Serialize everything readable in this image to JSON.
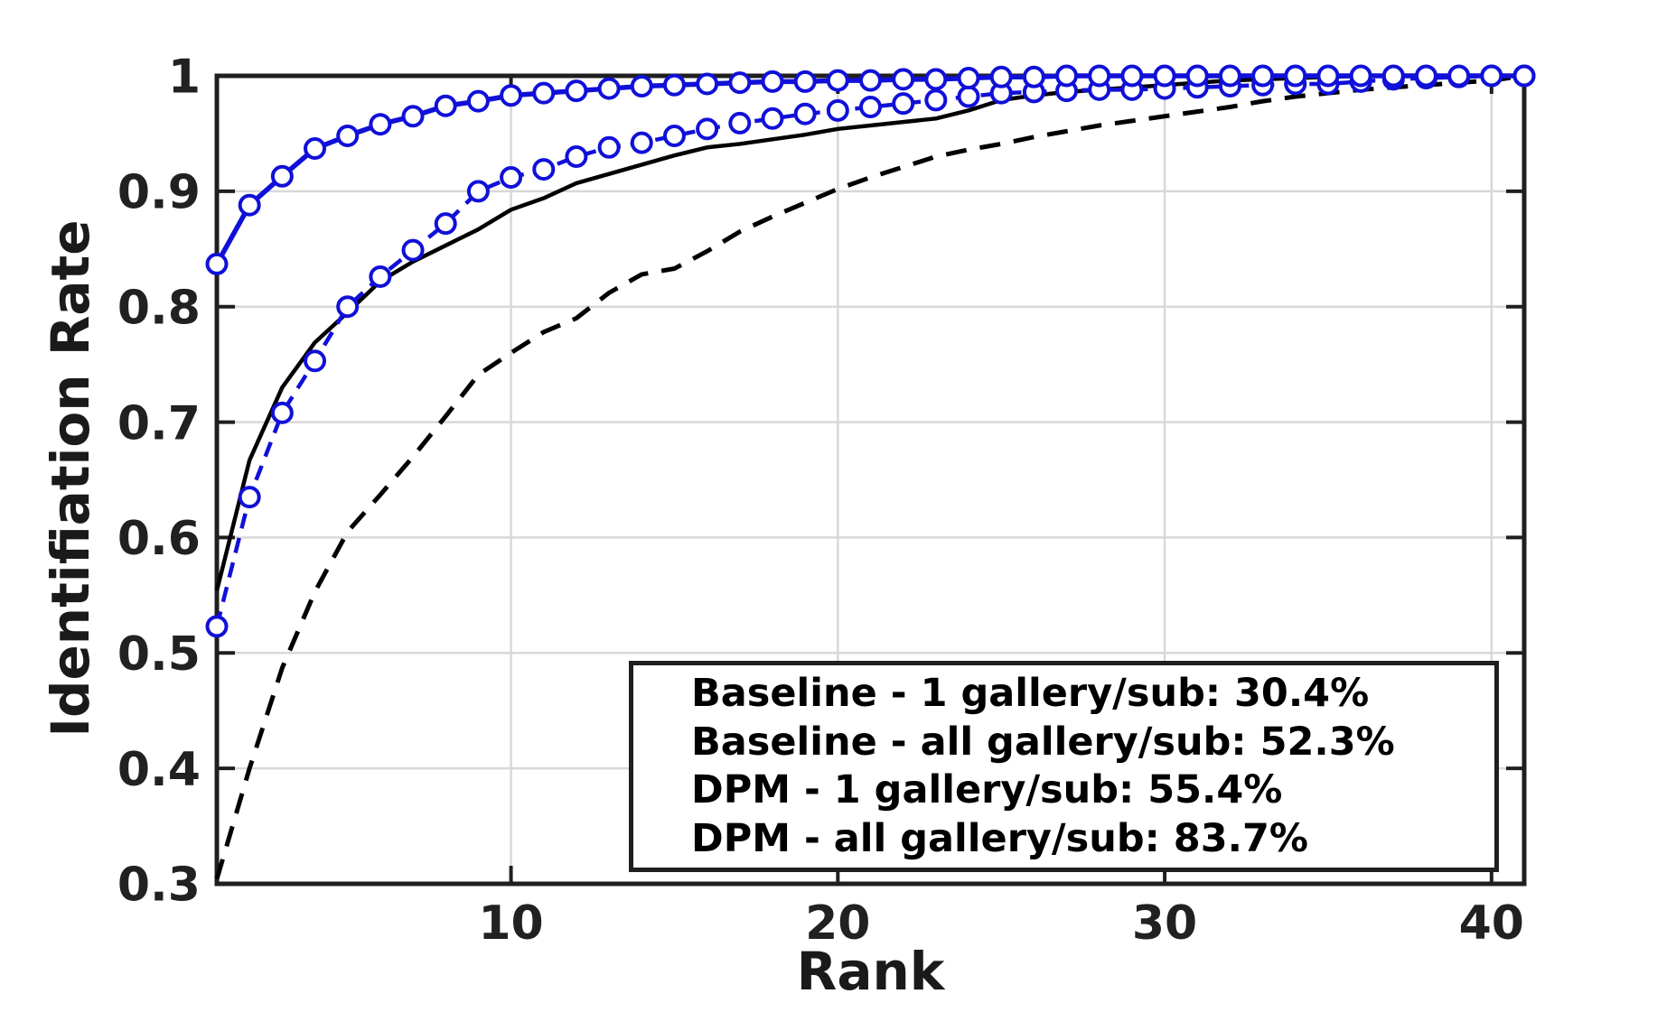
{
  "figure": {
    "background": "#ffffff",
    "axis_color": "#1f1f1f",
    "grid_color": "#d8d8d8",
    "tick_label_color": "#212121",
    "black_series_color": "#000000",
    "blue_series_color": "#1010d8"
  },
  "chart_data": {
    "type": "line",
    "title": "",
    "xlabel": "Rank",
    "ylabel": "Identifiation Rate",
    "xlim": [
      1,
      41
    ],
    "ylim": [
      0.3,
      1.0
    ],
    "xticks": [
      10,
      20,
      30,
      40
    ],
    "xtick_labels": [
      "10",
      "20",
      "30",
      "40"
    ],
    "yticks": [
      0.3,
      0.4,
      0.5,
      0.6,
      0.7,
      0.8,
      0.9,
      1.0
    ],
    "ytick_labels": [
      "0.3",
      "0.4",
      "0.5",
      "0.6",
      "0.7",
      "0.8",
      "0.9",
      "1"
    ],
    "grid": true,
    "legend_position": "bottom-right",
    "ranks": [
      1,
      2,
      3,
      4,
      5,
      6,
      7,
      8,
      9,
      10,
      11,
      12,
      13,
      14,
      15,
      16,
      17,
      18,
      19,
      20,
      21,
      22,
      23,
      24,
      25,
      26,
      27,
      28,
      29,
      30,
      31,
      32,
      33,
      34,
      35,
      36,
      37,
      38,
      39,
      40,
      41
    ],
    "series": [
      {
        "name": "baseline-1-gallery",
        "legend_label": "Baseline - 1 gallery/sub: 30.4%",
        "color": "#000000",
        "line_style": "dashed",
        "marker": "none",
        "rank1_rate_pct": 30.4,
        "values": [
          0.304,
          0.4,
          0.487,
          0.553,
          0.605,
          0.637,
          0.67,
          0.705,
          0.741,
          0.76,
          0.778,
          0.79,
          0.812,
          0.828,
          0.833,
          0.848,
          0.865,
          0.878,
          0.89,
          0.902,
          0.912,
          0.921,
          0.93,
          0.936,
          0.941,
          0.947,
          0.952,
          0.957,
          0.961,
          0.965,
          0.969,
          0.973,
          0.978,
          0.982,
          0.985,
          0.988,
          0.99,
          0.992,
          0.994,
          0.996,
          1.0
        ]
      },
      {
        "name": "baseline-all-gallery",
        "legend_label": "Baseline - all gallery/sub: 52.3%",
        "color": "#1010d8",
        "line_style": "dashed",
        "marker": "circle",
        "rank1_rate_pct": 52.3,
        "values": [
          0.523,
          0.635,
          0.708,
          0.753,
          0.8,
          0.826,
          0.849,
          0.872,
          0.9,
          0.912,
          0.919,
          0.93,
          0.938,
          0.942,
          0.948,
          0.954,
          0.959,
          0.963,
          0.967,
          0.97,
          0.973,
          0.976,
          0.979,
          0.982,
          0.985,
          0.986,
          0.987,
          0.988,
          0.988,
          0.989,
          0.99,
          0.991,
          0.992,
          0.993,
          0.993,
          0.995,
          0.997,
          0.998,
          0.999,
          1.0,
          1.0
        ]
      },
      {
        "name": "dpm-1-gallery",
        "legend_label": "DPM - 1 gallery/sub: 55.4%",
        "color": "#000000",
        "line_style": "solid",
        "marker": "none",
        "rank1_rate_pct": 55.4,
        "values": [
          0.554,
          0.667,
          0.73,
          0.769,
          0.795,
          0.822,
          0.839,
          0.853,
          0.867,
          0.884,
          0.894,
          0.907,
          0.915,
          0.923,
          0.931,
          0.938,
          0.941,
          0.945,
          0.949,
          0.954,
          0.957,
          0.96,
          0.963,
          0.97,
          0.979,
          0.983,
          0.986,
          0.988,
          0.99,
          0.992,
          0.994,
          0.996,
          0.997,
          0.998,
          0.999,
          1.0,
          1.0,
          1.0,
          1.0,
          1.0,
          1.0
        ]
      },
      {
        "name": "dpm-all-gallery",
        "legend_label": "DPM - all gallery/sub: 83.7%",
        "color": "#1010d8",
        "line_style": "solid",
        "marker": "circle",
        "rank1_rate_pct": 83.7,
        "values": [
          0.837,
          0.888,
          0.913,
          0.937,
          0.948,
          0.958,
          0.965,
          0.974,
          0.978,
          0.983,
          0.985,
          0.987,
          0.989,
          0.991,
          0.992,
          0.993,
          0.994,
          0.995,
          0.995,
          0.996,
          0.996,
          0.997,
          0.997,
          0.998,
          0.999,
          0.999,
          1.0,
          1.0,
          1.0,
          1.0,
          1.0,
          1.0,
          1.0,
          1.0,
          1.0,
          1.0,
          1.0,
          1.0,
          1.0,
          1.0,
          1.0
        ]
      }
    ]
  }
}
